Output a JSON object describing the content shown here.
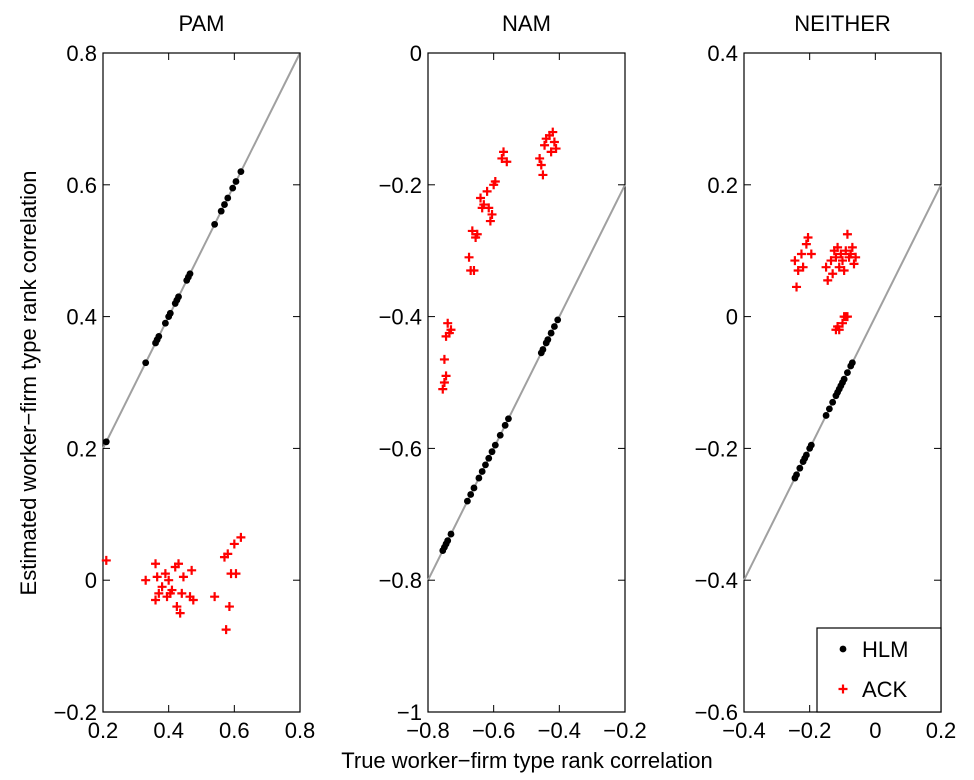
{
  "figure": {
    "ylabel": "Estimated worker−firm type rank correlation",
    "xlabel": "True worker−firm type rank correlation",
    "legend": {
      "entries": [
        {
          "label": "HLM",
          "marker": "dot",
          "color": "#000000"
        },
        {
          "label": "ACK",
          "marker": "plus",
          "color": "#ff0000"
        }
      ]
    },
    "colors": {
      "hlm": "#000000",
      "ack": "#ff0000",
      "identity": "#a0a0a0"
    }
  },
  "chart_data": [
    {
      "type": "scatter",
      "title": "PAM",
      "xlim": [
        0.2,
        0.8
      ],
      "ylim": [
        -0.2,
        0.8
      ],
      "xticks": [
        0.2,
        0.4,
        0.6,
        0.8
      ],
      "xtick_labels": [
        "0.2",
        "0.4",
        "0.6",
        "0.8"
      ],
      "yticks": [
        -0.2,
        0,
        0.2,
        0.4,
        0.6,
        0.8
      ],
      "ytick_labels": [
        "−0.2",
        "0",
        "0.2",
        "0.4",
        "0.6",
        "0.8"
      ],
      "identity_line": true,
      "series": [
        {
          "name": "HLM",
          "marker": "dot",
          "color": "#000000",
          "points": [
            [
              0.21,
              0.21
            ],
            [
              0.33,
              0.33
            ],
            [
              0.36,
              0.36
            ],
            [
              0.365,
              0.365
            ],
            [
              0.37,
              0.37
            ],
            [
              0.39,
              0.39
            ],
            [
              0.4,
              0.4
            ],
            [
              0.405,
              0.405
            ],
            [
              0.42,
              0.42
            ],
            [
              0.425,
              0.425
            ],
            [
              0.43,
              0.43
            ],
            [
              0.455,
              0.455
            ],
            [
              0.46,
              0.46
            ],
            [
              0.465,
              0.465
            ],
            [
              0.54,
              0.54
            ],
            [
              0.56,
              0.56
            ],
            [
              0.57,
              0.57
            ],
            [
              0.58,
              0.58
            ],
            [
              0.595,
              0.595
            ],
            [
              0.605,
              0.605
            ],
            [
              0.62,
              0.62
            ]
          ]
        },
        {
          "name": "ACK",
          "marker": "plus",
          "color": "#ff0000",
          "points": [
            [
              0.21,
              0.03
            ],
            [
              0.33,
              0.0
            ],
            [
              0.36,
              0.025
            ],
            [
              0.36,
              -0.03
            ],
            [
              0.365,
              0.005
            ],
            [
              0.37,
              -0.02
            ],
            [
              0.38,
              -0.01
            ],
            [
              0.39,
              0.01
            ],
            [
              0.395,
              -0.025
            ],
            [
              0.4,
              0.0
            ],
            [
              0.405,
              -0.02
            ],
            [
              0.41,
              -0.015
            ],
            [
              0.42,
              0.02
            ],
            [
              0.425,
              -0.04
            ],
            [
              0.43,
              0.025
            ],
            [
              0.435,
              -0.05
            ],
            [
              0.44,
              -0.02
            ],
            [
              0.445,
              0.005
            ],
            [
              0.465,
              -0.025
            ],
            [
              0.47,
              0.015
            ],
            [
              0.475,
              -0.03
            ],
            [
              0.54,
              -0.025
            ],
            [
              0.57,
              0.035
            ],
            [
              0.575,
              -0.075
            ],
            [
              0.58,
              0.04
            ],
            [
              0.585,
              -0.04
            ],
            [
              0.59,
              0.01
            ],
            [
              0.6,
              0.055
            ],
            [
              0.605,
              0.01
            ],
            [
              0.62,
              0.065
            ]
          ]
        }
      ]
    },
    {
      "type": "scatter",
      "title": "NAM",
      "xlim": [
        -0.8,
        -0.2
      ],
      "ylim": [
        -1.0,
        0.0
      ],
      "xticks": [
        -0.8,
        -0.6,
        -0.4,
        -0.2
      ],
      "xtick_labels": [
        "−0.8",
        "−0.6",
        "−0.4",
        "−0.2"
      ],
      "yticks": [
        -1.0,
        -0.8,
        -0.6,
        -0.4,
        -0.2,
        0.0
      ],
      "ytick_labels": [
        "−1",
        "−0.8",
        "−0.6",
        "−0.4",
        "−0.2",
        "0"
      ],
      "identity_line": true,
      "series": [
        {
          "name": "HLM",
          "marker": "dot",
          "color": "#000000",
          "points": [
            [
              -0.755,
              -0.755
            ],
            [
              -0.75,
              -0.75
            ],
            [
              -0.745,
              -0.745
            ],
            [
              -0.74,
              -0.74
            ],
            [
              -0.73,
              -0.73
            ],
            [
              -0.68,
              -0.68
            ],
            [
              -0.67,
              -0.67
            ],
            [
              -0.66,
              -0.66
            ],
            [
              -0.645,
              -0.645
            ],
            [
              -0.635,
              -0.635
            ],
            [
              -0.625,
              -0.625
            ],
            [
              -0.615,
              -0.615
            ],
            [
              -0.605,
              -0.605
            ],
            [
              -0.595,
              -0.595
            ],
            [
              -0.58,
              -0.58
            ],
            [
              -0.565,
              -0.565
            ],
            [
              -0.555,
              -0.555
            ],
            [
              -0.455,
              -0.455
            ],
            [
              -0.45,
              -0.45
            ],
            [
              -0.44,
              -0.44
            ],
            [
              -0.435,
              -0.435
            ],
            [
              -0.425,
              -0.425
            ],
            [
              -0.415,
              -0.415
            ],
            [
              -0.405,
              -0.405
            ]
          ]
        },
        {
          "name": "ACK",
          "marker": "plus",
          "color": "#ff0000",
          "points": [
            [
              -0.755,
              -0.51
            ],
            [
              -0.75,
              -0.465
            ],
            [
              -0.75,
              -0.5
            ],
            [
              -0.745,
              -0.49
            ],
            [
              -0.745,
              -0.43
            ],
            [
              -0.74,
              -0.41
            ],
            [
              -0.735,
              -0.425
            ],
            [
              -0.73,
              -0.42
            ],
            [
              -0.675,
              -0.31
            ],
            [
              -0.67,
              -0.33
            ],
            [
              -0.665,
              -0.27
            ],
            [
              -0.66,
              -0.33
            ],
            [
              -0.655,
              -0.28
            ],
            [
              -0.65,
              -0.275
            ],
            [
              -0.64,
              -0.22
            ],
            [
              -0.635,
              -0.235
            ],
            [
              -0.63,
              -0.23
            ],
            [
              -0.62,
              -0.21
            ],
            [
              -0.615,
              -0.235
            ],
            [
              -0.61,
              -0.255
            ],
            [
              -0.605,
              -0.245
            ],
            [
              -0.6,
              -0.2
            ],
            [
              -0.595,
              -0.195
            ],
            [
              -0.575,
              -0.16
            ],
            [
              -0.57,
              -0.15
            ],
            [
              -0.56,
              -0.165
            ],
            [
              -0.46,
              -0.16
            ],
            [
              -0.455,
              -0.17
            ],
            [
              -0.45,
              -0.185
            ],
            [
              -0.445,
              -0.14
            ],
            [
              -0.44,
              -0.13
            ],
            [
              -0.43,
              -0.125
            ],
            [
              -0.425,
              -0.15
            ],
            [
              -0.42,
              -0.12
            ],
            [
              -0.415,
              -0.135
            ],
            [
              -0.41,
              -0.145
            ]
          ]
        }
      ]
    },
    {
      "type": "scatter",
      "title": "NEITHER",
      "xlim": [
        -0.4,
        0.2
      ],
      "ylim": [
        -0.6,
        0.4
      ],
      "xticks": [
        -0.4,
        -0.2,
        0.0,
        0.2
      ],
      "xtick_labels": [
        "−0.4",
        "−0.2",
        "0",
        "0.2"
      ],
      "yticks": [
        -0.6,
        -0.4,
        -0.2,
        0.0,
        0.2,
        0.4
      ],
      "ytick_labels": [
        "−0.6",
        "−0.4",
        "−0.2",
        "0",
        "0.2",
        "0.4"
      ],
      "identity_line": true,
      "series": [
        {
          "name": "HLM",
          "marker": "dot",
          "color": "#000000",
          "points": [
            [
              -0.245,
              -0.245
            ],
            [
              -0.24,
              -0.24
            ],
            [
              -0.23,
              -0.23
            ],
            [
              -0.22,
              -0.22
            ],
            [
              -0.215,
              -0.215
            ],
            [
              -0.21,
              -0.21
            ],
            [
              -0.2,
              -0.2
            ],
            [
              -0.195,
              -0.195
            ],
            [
              -0.15,
              -0.15
            ],
            [
              -0.14,
              -0.14
            ],
            [
              -0.13,
              -0.13
            ],
            [
              -0.12,
              -0.12
            ],
            [
              -0.115,
              -0.115
            ],
            [
              -0.11,
              -0.11
            ],
            [
              -0.105,
              -0.105
            ],
            [
              -0.1,
              -0.1
            ],
            [
              -0.095,
              -0.095
            ],
            [
              -0.085,
              -0.085
            ],
            [
              -0.075,
              -0.075
            ],
            [
              -0.07,
              -0.07
            ]
          ]
        },
        {
          "name": "ACK",
          "marker": "plus",
          "color": "#ff0000",
          "points": [
            [
              -0.245,
              0.085
            ],
            [
              -0.24,
              0.045
            ],
            [
              -0.235,
              0.07
            ],
            [
              -0.225,
              0.095
            ],
            [
              -0.22,
              0.075
            ],
            [
              -0.21,
              0.11
            ],
            [
              -0.205,
              0.12
            ],
            [
              -0.195,
              0.095
            ],
            [
              -0.15,
              0.075
            ],
            [
              -0.145,
              0.055
            ],
            [
              -0.135,
              0.085
            ],
            [
              -0.13,
              0.065
            ],
            [
              -0.125,
              0.1
            ],
            [
              -0.12,
              0.09
            ],
            [
              -0.12,
              -0.02
            ],
            [
              -0.115,
              0.105
            ],
            [
              -0.115,
              -0.015
            ],
            [
              -0.11,
              0.075
            ],
            [
              -0.11,
              -0.02
            ],
            [
              -0.105,
              0.095
            ],
            [
              -0.1,
              0.085
            ],
            [
              -0.1,
              -0.01
            ],
            [
              -0.095,
              0.07
            ],
            [
              -0.095,
              0.0
            ],
            [
              -0.09,
              0.1
            ],
            [
              -0.09,
              0.0
            ],
            [
              -0.085,
              0.125
            ],
            [
              -0.085,
              0.0
            ],
            [
              -0.08,
              0.09
            ],
            [
              -0.075,
              0.095
            ],
            [
              -0.07,
              0.105
            ],
            [
              -0.065,
              0.08
            ],
            [
              -0.06,
              0.09
            ]
          ]
        }
      ]
    }
  ]
}
